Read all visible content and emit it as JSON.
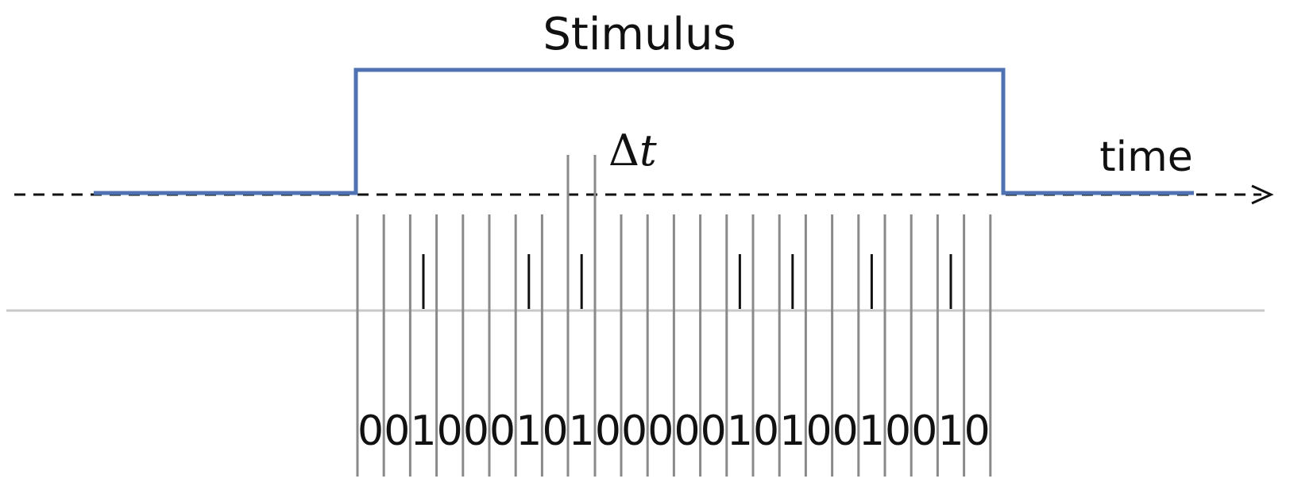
{
  "labels": {
    "stimulus": "Stimulus",
    "time": "time",
    "delta_symbol": "Δ",
    "delta_var": "t"
  },
  "bits": [
    "0",
    "0",
    "1",
    "0",
    "0",
    "0",
    "1",
    "0",
    "1",
    "0",
    "0",
    "0",
    "0",
    "0",
    "1",
    "0",
    "1",
    "0",
    "0",
    "1",
    "0",
    "0",
    "1",
    "0"
  ],
  "colors": {
    "stimulus_line": "#4f72b3",
    "bin_lines": "#8a8a8a",
    "spike_marks": "#111111",
    "axis": "#111111",
    "baseline": "#c8c8c8"
  }
}
